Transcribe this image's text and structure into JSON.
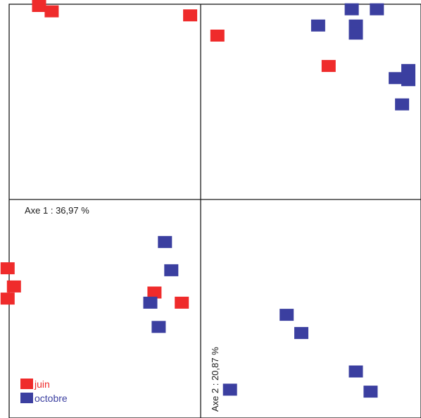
{
  "chart_data": {
    "type": "scatter",
    "title": "",
    "xlabel": "Axe 1 : 36,97 %",
    "ylabel": "Axe 2 : 20,87 %",
    "xlim": [
      -0.95,
      1.0
    ],
    "ylim": [
      -0.97,
      1.0
    ],
    "origin": [
      0,
      0
    ],
    "grid": false,
    "legend_position": "bottom-left",
    "series": [
      {
        "name": "juin",
        "color": "#ef2b2b",
        "points": [
          {
            "x": -0.77,
            "y": 0.98
          },
          {
            "x": -0.71,
            "y": 0.93
          },
          {
            "x": -0.05,
            "y": 0.91
          },
          {
            "x": 0.08,
            "y": 0.81
          },
          {
            "x": 0.61,
            "y": 0.66
          },
          {
            "x": -0.92,
            "y": -0.34
          },
          {
            "x": -0.89,
            "y": -0.43
          },
          {
            "x": -0.92,
            "y": -0.49
          },
          {
            "x": -0.22,
            "y": -0.46
          },
          {
            "x": -0.09,
            "y": -0.51
          }
        ]
      },
      {
        "name": "octobre",
        "color": "#3b3fa0",
        "points": [
          {
            "x": 0.72,
            "y": 0.94
          },
          {
            "x": 0.84,
            "y": 0.94
          },
          {
            "x": 0.56,
            "y": 0.86
          },
          {
            "x": 0.74,
            "y": 0.86
          },
          {
            "x": 0.74,
            "y": 0.82
          },
          {
            "x": 0.93,
            "y": 0.6
          },
          {
            "x": 0.99,
            "y": 0.64
          },
          {
            "x": 0.99,
            "y": 0.59
          },
          {
            "x": 0.96,
            "y": 0.47
          },
          {
            "x": -0.17,
            "y": -0.21
          },
          {
            "x": -0.14,
            "y": -0.35
          },
          {
            "x": -0.24,
            "y": -0.51
          },
          {
            "x": -0.2,
            "y": -0.63
          },
          {
            "x": 0.41,
            "y": -0.57
          },
          {
            "x": 0.48,
            "y": -0.66
          },
          {
            "x": 0.74,
            "y": -0.85
          },
          {
            "x": 0.14,
            "y": -0.94
          },
          {
            "x": 0.81,
            "y": -0.95
          }
        ]
      }
    ]
  }
}
